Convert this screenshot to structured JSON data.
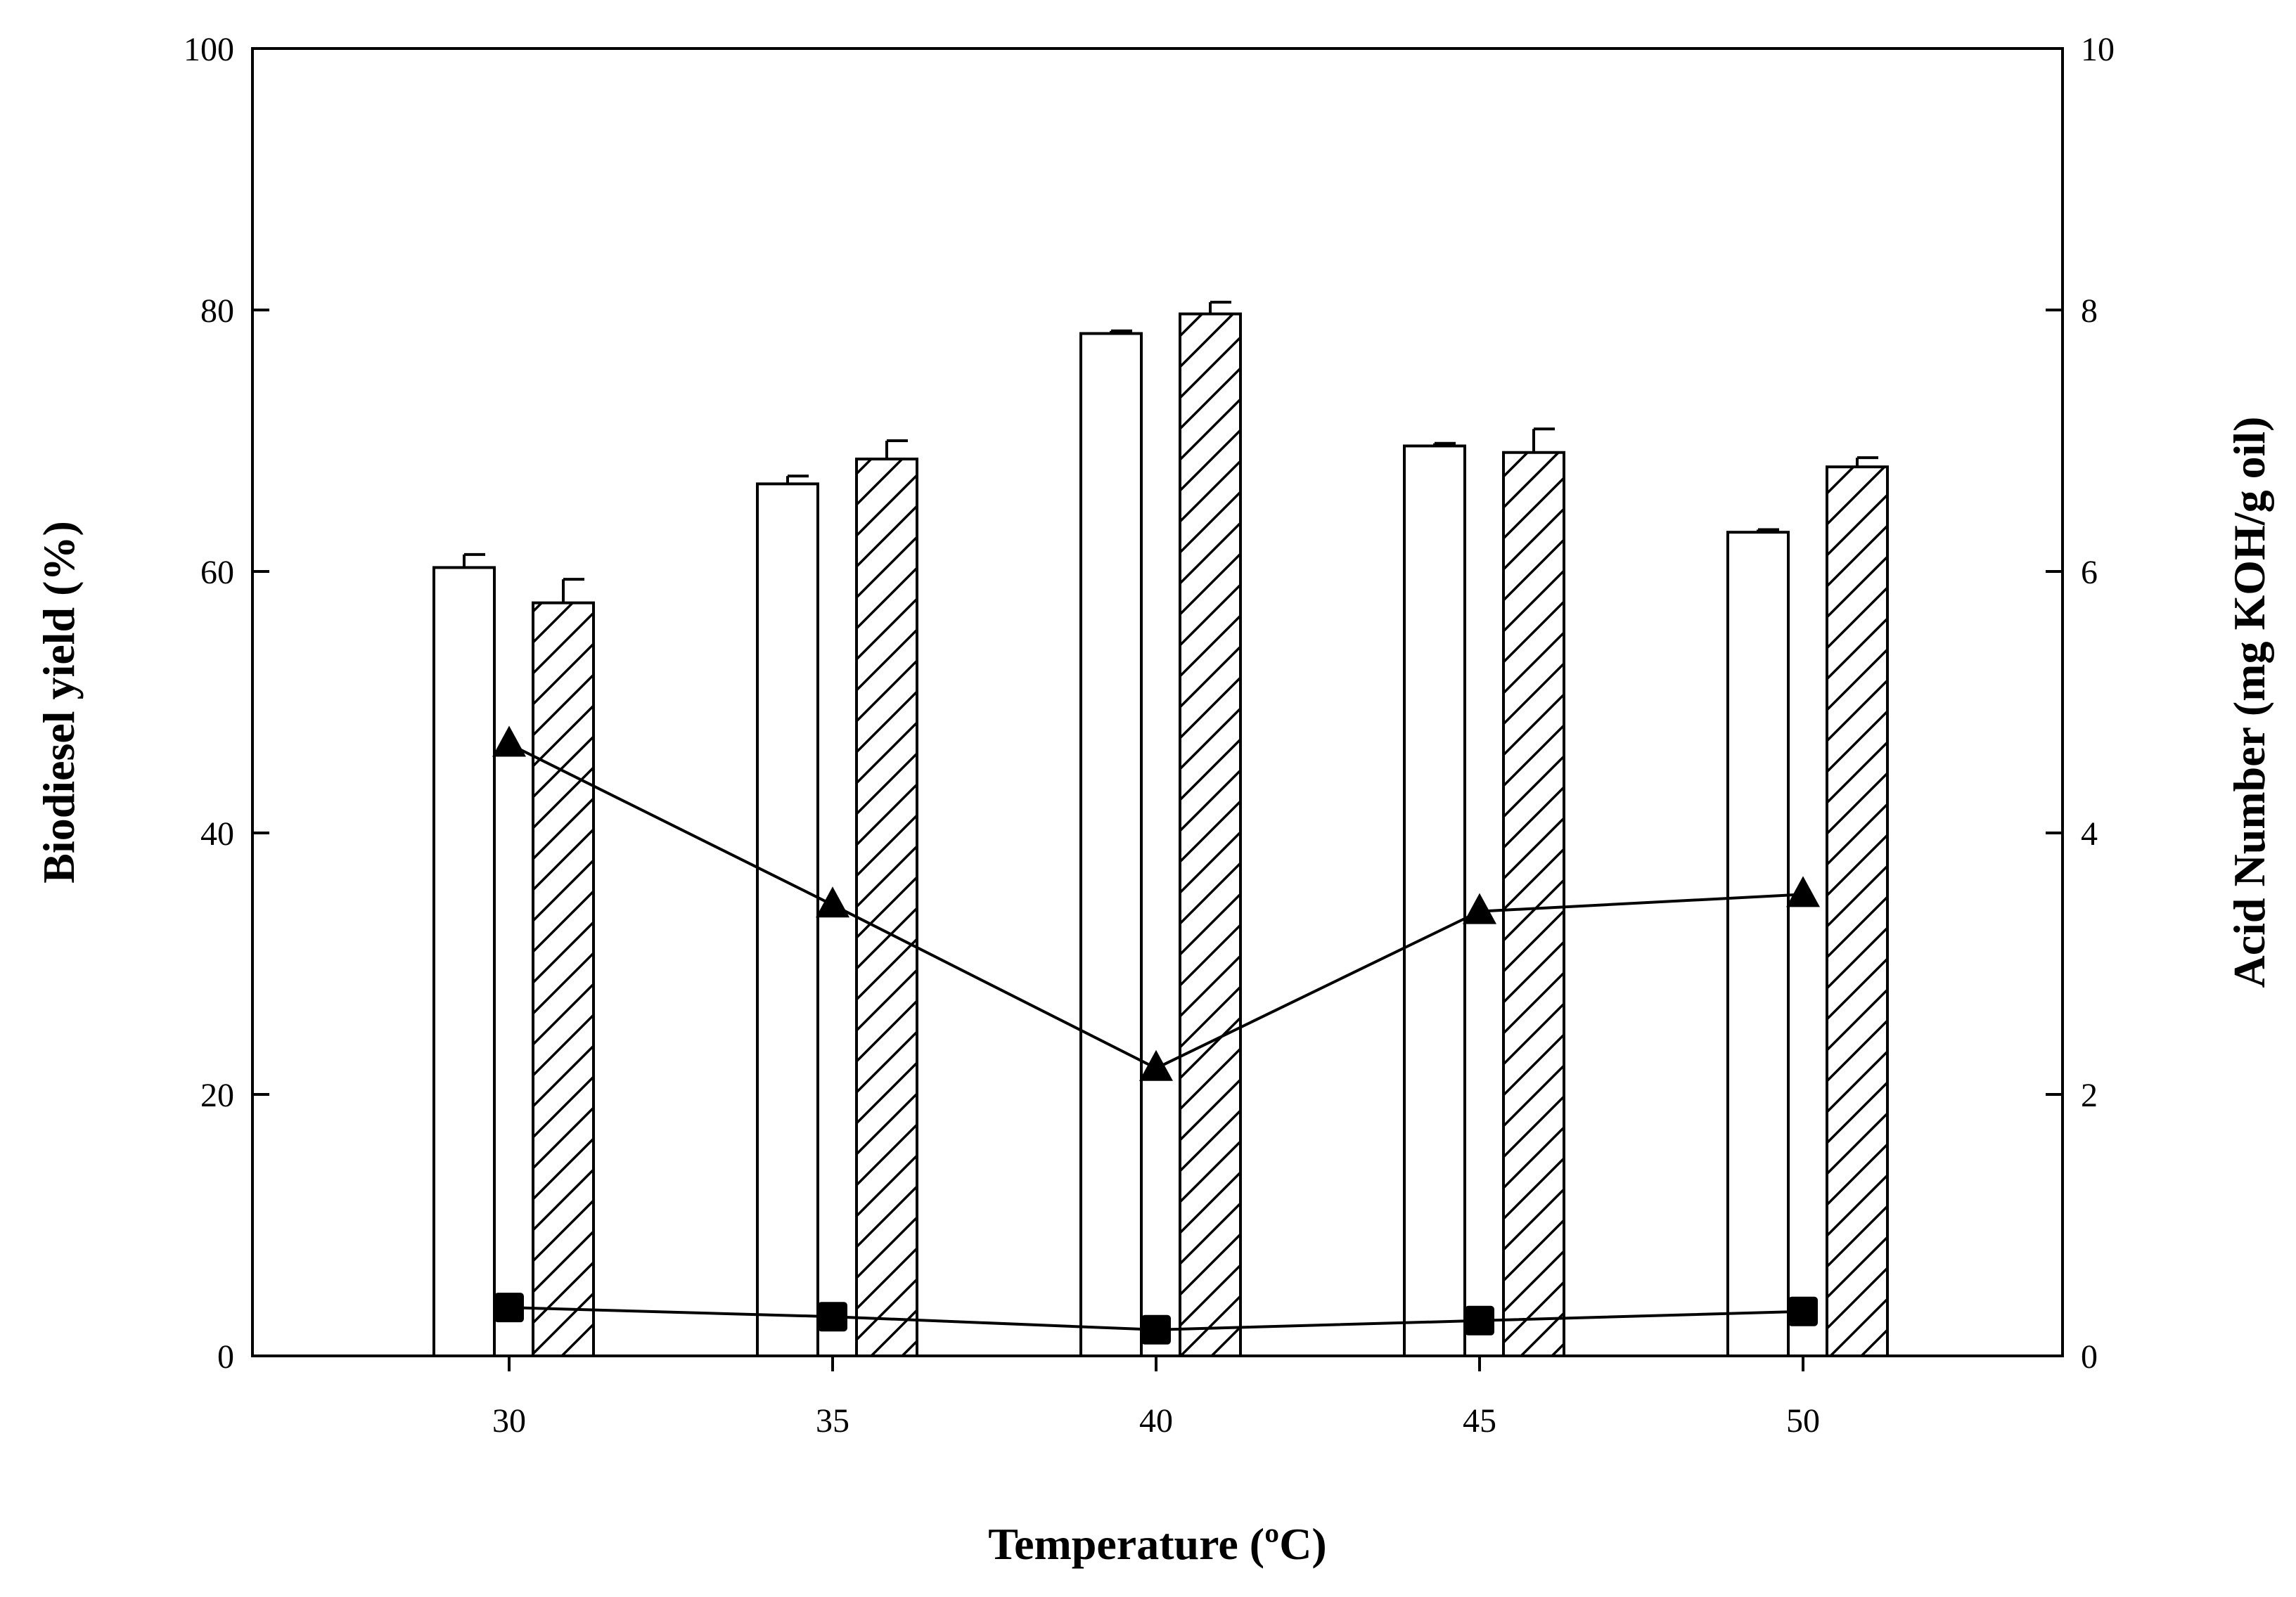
{
  "chart_data": {
    "type": "bar",
    "title": "",
    "xlabel": "Temperature (ºC)",
    "ylabel": "Biodiesel yield (%)",
    "y2label": "Acid Number (mg KOH/g oil)",
    "categories": [
      "30",
      "35",
      "40",
      "45",
      "50"
    ],
    "ylim": [
      0,
      100
    ],
    "y2lim": [
      0,
      10
    ],
    "yticks": [
      "0",
      "20",
      "40",
      "60",
      "80",
      "100"
    ],
    "y2ticks": [
      "0",
      "2",
      "4",
      "6",
      "8",
      "10"
    ],
    "grid": false,
    "series": [
      {
        "name": "Biodiesel yield (open bars)",
        "type": "bar",
        "axis": "left",
        "pattern": "open",
        "values": [
          60.3,
          66.7,
          78.2,
          69.6,
          63.0
        ],
        "errors": [
          1.0,
          0.6,
          0.2,
          0.2,
          0.2
        ]
      },
      {
        "name": "Biodiesel yield (hatched bars)",
        "type": "bar",
        "axis": "left",
        "pattern": "hatched",
        "values": [
          57.6,
          68.6,
          79.7,
          69.1,
          68.0
        ],
        "errors": [
          1.8,
          1.4,
          0.9,
          1.8,
          0.7
        ]
      },
      {
        "name": "Acid number (triangles)",
        "type": "line",
        "axis": "right",
        "marker": "triangle",
        "values": [
          4.68,
          3.45,
          2.2,
          3.4,
          3.53
        ],
        "errors": [
          0.0,
          0.0,
          0.0,
          0.0,
          0.0
        ]
      },
      {
        "name": "Acid number (squares)",
        "type": "line",
        "axis": "right",
        "marker": "square",
        "values": [
          0.37,
          0.3,
          0.2,
          0.27,
          0.34
        ],
        "errors": [
          0.0,
          0.0,
          0.0,
          0.0,
          0.0
        ]
      }
    ]
  }
}
